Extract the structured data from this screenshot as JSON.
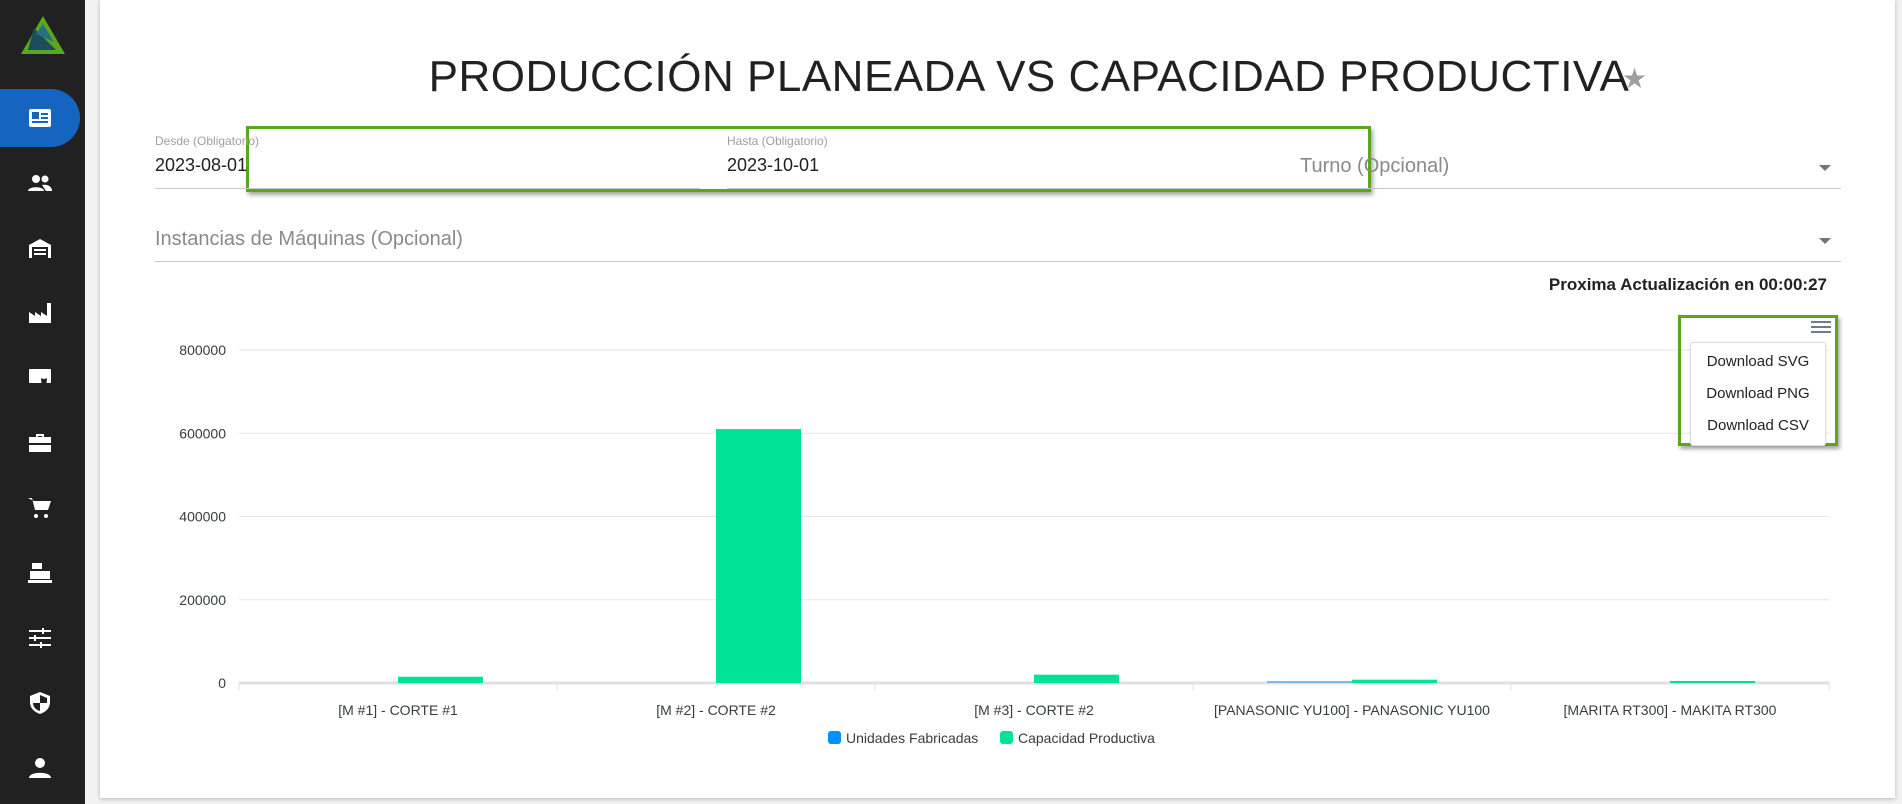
{
  "sidebar": {
    "items": [
      {
        "icon": "newspaper-icon",
        "active": true
      },
      {
        "icon": "people-icon"
      },
      {
        "icon": "warehouse-icon"
      },
      {
        "icon": "factory-icon"
      },
      {
        "icon": "certificate-icon"
      },
      {
        "icon": "toolbox-icon"
      },
      {
        "icon": "cart-icon"
      },
      {
        "icon": "cash-register-icon"
      },
      {
        "icon": "sliders-icon"
      },
      {
        "icon": "shield-icon"
      },
      {
        "icon": "user-icon"
      }
    ]
  },
  "page": {
    "title": "PRODUCCIÓN PLANEADA VS CAPACIDAD PRODUCTIVA",
    "star": "★"
  },
  "filters": {
    "desde": {
      "label": "Desde (Obligatorio)",
      "value": "2023-08-01"
    },
    "hasta": {
      "label": "Hasta (Obligatorio)",
      "value": "2023-10-01"
    },
    "turno": {
      "placeholder": "Turno (Opcional)"
    },
    "instancias": {
      "placeholder": "Instancias de Máquinas (Opcional)"
    }
  },
  "timer": "Proxima Actualización en 00:00:27",
  "menu": {
    "items": [
      "Download SVG",
      "Download PNG",
      "Download CSV"
    ]
  },
  "colors": {
    "accent": "#1565c0",
    "highlight": "#5aa61e",
    "unidades": "#008ffb",
    "capacidad": "#00e396"
  },
  "chart_data": {
    "type": "bar",
    "categories": [
      "[M #1] - CORTE #1",
      "[M #2] - CORTE #2",
      "[M #3] - CORTE #2",
      "[PANASONIC YU100] - PANASONIC YU100",
      "[MARITA RT300] - MAKITA RT300"
    ],
    "series": [
      {
        "name": "Unidades Fabricadas",
        "values": [
          0,
          0,
          0,
          3000,
          0
        ]
      },
      {
        "name": "Capacidad Productiva",
        "values": [
          15000,
          610000,
          20000,
          8000,
          2000
        ]
      }
    ],
    "yticks": [
      "0",
      "200000",
      "400000",
      "600000",
      "800000"
    ],
    "ylim": [
      0,
      800000
    ],
    "grid": true,
    "legend": "bottom"
  }
}
